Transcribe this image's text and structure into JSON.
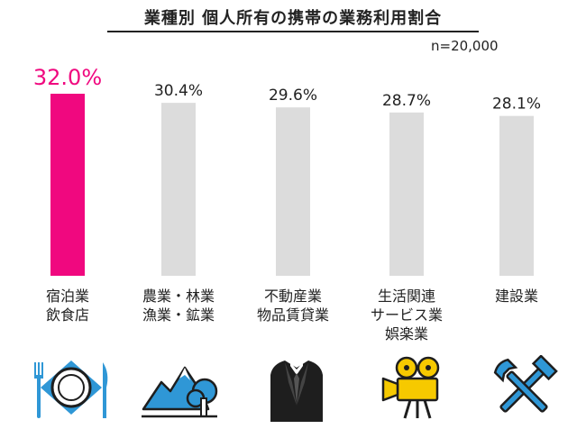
{
  "title": "業種別 個人所有の携帯の業務利用割合",
  "sample": "n=20,000",
  "colors": {
    "highlight": "#f0087f",
    "bar": "#dcdcdc",
    "text": "#222222",
    "icon_blue": "#2f97d6",
    "icon_yellow": "#f6c900",
    "icon_dark": "#1e1e1e"
  },
  "chart_data": {
    "type": "bar",
    "categories": [
      [
        "宿泊業",
        "飲食店"
      ],
      [
        "農業・林業",
        "漁業・鉱業"
      ],
      [
        "不動産業",
        "物品賃貸業"
      ],
      [
        "生活関連",
        "サービス業",
        "娯楽業"
      ],
      [
        "建設業"
      ]
    ],
    "values": [
      32.0,
      30.4,
      29.6,
      28.7,
      28.1
    ],
    "value_labels": [
      "32.0%",
      "30.4%",
      "29.6%",
      "28.7%",
      "28.1%"
    ],
    "highlight_index": 0,
    "ylim": [
      0,
      34
    ],
    "grid": false
  },
  "icons": [
    "dining-icon",
    "mountain-tree-icon",
    "suit-icon",
    "movie-camera-icon",
    "tools-icon"
  ]
}
